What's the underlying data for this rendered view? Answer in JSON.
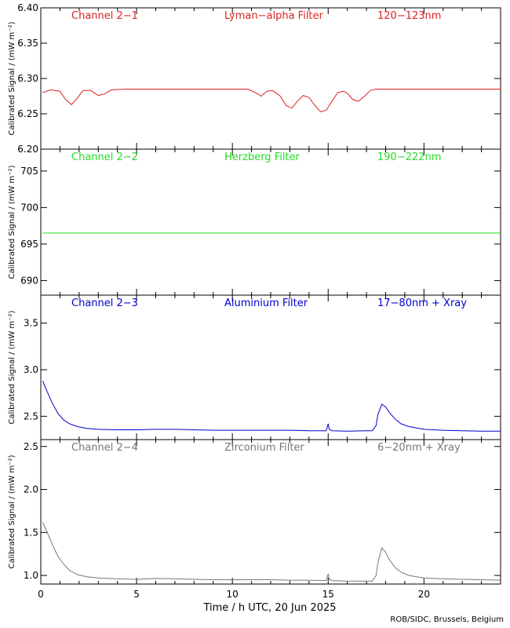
{
  "chart_data": [
    {
      "type": "line",
      "labels": [
        "Channel 2−1",
        "Lyman−alpha Filter",
        "120−123nm"
      ],
      "ylabel": "Calibrated Signal / (mW m⁻²)",
      "color": "#dd2222",
      "ylim": [
        6.2,
        6.4
      ],
      "yticks": [
        6.2,
        6.25,
        6.3,
        6.35,
        6.4
      ],
      "ytick_labels": [
        "6.20",
        "6.25",
        "6.30",
        "6.35",
        "6.40"
      ],
      "x": [
        0.1,
        0.5,
        1.0,
        1.3,
        1.6,
        1.9,
        2.2,
        2.6,
        3.0,
        3.3,
        3.7,
        4.5,
        6,
        8,
        10,
        10.8,
        11.2,
        11.5,
        11.8,
        12.1,
        12.5,
        12.8,
        13.1,
        13.4,
        13.7,
        14.0,
        14.3,
        14.6,
        14.9,
        15.2,
        15.5,
        15.8,
        16.0,
        16.3,
        16.6,
        16.9,
        17.2,
        17.5,
        18,
        20,
        22,
        24
      ],
      "y": [
        6.28,
        6.284,
        6.282,
        6.27,
        6.263,
        6.272,
        6.283,
        6.283,
        6.276,
        6.278,
        6.284,
        6.285,
        6.285,
        6.285,
        6.285,
        6.285,
        6.28,
        6.275,
        6.282,
        6.283,
        6.275,
        6.262,
        6.258,
        6.268,
        6.276,
        6.273,
        6.262,
        6.253,
        6.255,
        6.268,
        6.28,
        6.282,
        6.279,
        6.27,
        6.268,
        6.275,
        6.283,
        6.285,
        6.285,
        6.285,
        6.285,
        6.285
      ]
    },
    {
      "type": "line",
      "labels": [
        "Channel 2−2",
        "Herzberg Filter",
        "190−222nm"
      ],
      "ylabel": "Calibrated Signal / (mW m⁻²)",
      "color": "#22dd22",
      "ylim": [
        688,
        708
      ],
      "yticks": [
        690,
        695,
        700,
        705
      ],
      "ytick_labels": [
        "690",
        "695",
        "700",
        "705"
      ],
      "x": [
        0.1,
        24
      ],
      "y": [
        696.5,
        696.5
      ]
    },
    {
      "type": "line",
      "labels": [
        "Channel 2−3",
        "Aluminium Filter",
        "17−80nm + Xray"
      ],
      "ylabel": "Calibrated Signal / (mW m⁻²)",
      "color": "#0000cc",
      "ylim": [
        2.25,
        3.8
      ],
      "yticks": [
        2.5,
        3.0,
        3.5
      ],
      "ytick_labels": [
        "2.5",
        "3.0",
        "3.5"
      ],
      "x": [
        0.1,
        0.3,
        0.6,
        0.9,
        1.2,
        1.5,
        1.9,
        2.4,
        3,
        4,
        5,
        6,
        7,
        8,
        9,
        10,
        11,
        12,
        13,
        14,
        14.9,
        15.0,
        15.05,
        15.2,
        16,
        17,
        17.3,
        17.5,
        17.6,
        17.8,
        18.0,
        18.2,
        18.5,
        18.8,
        19.2,
        20,
        21,
        22,
        23,
        24
      ],
      "y": [
        2.88,
        2.78,
        2.64,
        2.53,
        2.46,
        2.42,
        2.39,
        2.37,
        2.36,
        2.355,
        2.355,
        2.36,
        2.36,
        2.355,
        2.35,
        2.35,
        2.35,
        2.35,
        2.35,
        2.345,
        2.345,
        2.42,
        2.36,
        2.345,
        2.34,
        2.345,
        2.345,
        2.4,
        2.52,
        2.63,
        2.6,
        2.54,
        2.47,
        2.42,
        2.39,
        2.36,
        2.35,
        2.345,
        2.34,
        2.34
      ]
    },
    {
      "type": "line",
      "labels": [
        "Channel 2−4",
        "Zirconium Filter",
        "6−20nm + Xray"
      ],
      "ylabel": "Calibrated Signal / (mW m⁻²)",
      "color": "#777777",
      "ylim": [
        0.9,
        2.58
      ],
      "yticks": [
        1.0,
        1.5,
        2.0,
        2.5
      ],
      "ytick_labels": [
        "1.0",
        "1.5",
        "2.0",
        "2.5"
      ],
      "x": [
        0.1,
        0.3,
        0.6,
        0.9,
        1.2,
        1.5,
        1.9,
        2.4,
        3,
        4,
        5,
        6,
        7,
        8,
        9,
        10,
        11,
        12,
        13,
        14,
        14.9,
        15.0,
        15.05,
        15.2,
        16,
        17,
        17.3,
        17.5,
        17.6,
        17.8,
        18.0,
        18.2,
        18.5,
        18.8,
        19.2,
        20,
        21,
        22,
        23,
        24
      ],
      "y": [
        1.62,
        1.52,
        1.36,
        1.22,
        1.13,
        1.06,
        1.01,
        0.985,
        0.97,
        0.96,
        0.955,
        0.965,
        0.96,
        0.955,
        0.95,
        0.95,
        0.95,
        0.95,
        0.945,
        0.945,
        0.94,
        1.02,
        0.96,
        0.94,
        0.935,
        0.935,
        0.935,
        1.0,
        1.15,
        1.32,
        1.27,
        1.18,
        1.09,
        1.04,
        1.0,
        0.97,
        0.96,
        0.955,
        0.95,
        0.945
      ]
    }
  ],
  "xaxis": {
    "xlim": [
      0,
      24
    ],
    "ticks": [
      0,
      5,
      10,
      15,
      20
    ],
    "tick_labels": [
      "0",
      "5",
      "10",
      "15",
      "20"
    ],
    "label": "Time / h UTC, 20 Jun 2025"
  },
  "credit": "ROB/SIDC, Brussels, Belgium"
}
